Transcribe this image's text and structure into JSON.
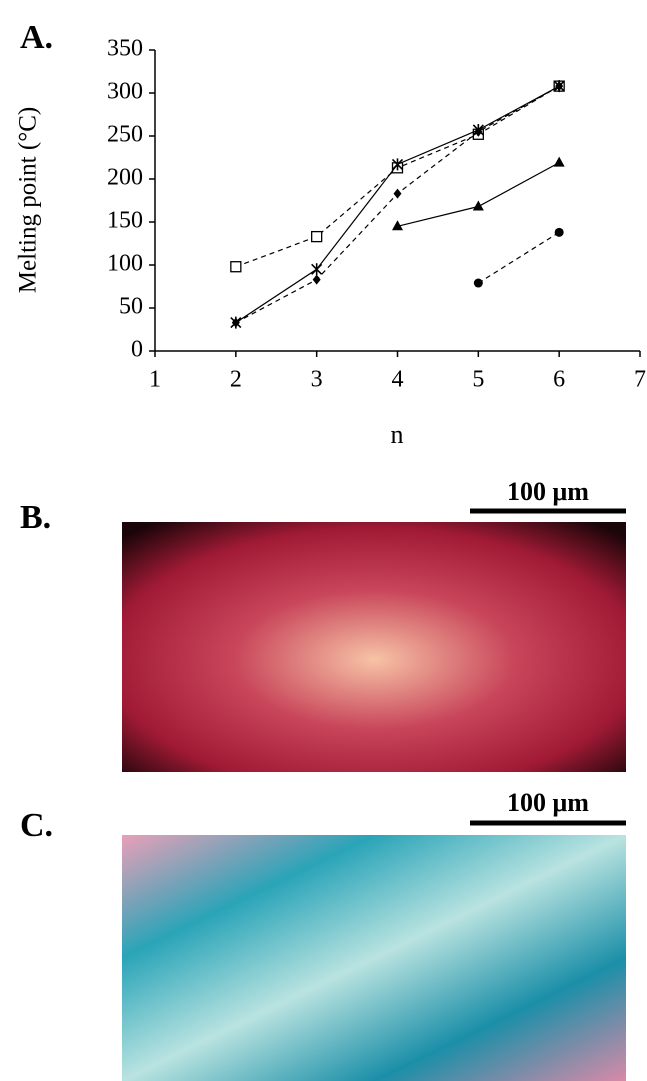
{
  "chart_data": {
    "type": "line",
    "panel_label": "A.",
    "x_label": "n",
    "y_label": "Melting point (°C)",
    "xlim": [
      1,
      7
    ],
    "xticks": [
      1,
      2,
      3,
      4,
      5,
      6,
      7
    ],
    "ylim": [
      0,
      350
    ],
    "yticks": [
      0,
      50,
      100,
      150,
      200,
      250,
      300,
      350
    ],
    "series": [
      {
        "color": "#000000",
        "marker": "square-open",
        "dashed": true,
        "x": [
          2,
          3,
          4,
          5,
          6
        ],
        "values": [
          98,
          133,
          213,
          252,
          308
        ]
      },
      {
        "color": "#000000",
        "marker": "asterisk",
        "dashed": false,
        "x": [
          2,
          3,
          4,
          5,
          6
        ],
        "values": [
          33,
          95,
          217,
          257,
          308
        ]
      },
      {
        "color": "#000000",
        "marker": "diamond",
        "dashed": true,
        "x": [
          2,
          3,
          4,
          5,
          6
        ],
        "values": [
          33,
          83,
          183,
          255,
          308
        ]
      },
      {
        "color": "#000000",
        "marker": "triangle",
        "dashed": false,
        "x": [
          4,
          5,
          6
        ],
        "values": [
          145,
          168,
          219
        ]
      },
      {
        "color": "#000000",
        "marker": "circle",
        "dashed": true,
        "x": [
          5,
          6
        ],
        "values": [
          79,
          138
        ]
      }
    ]
  },
  "panels": [
    {
      "label": "B.",
      "scale_bar": "100 μm"
    },
    {
      "label": "C.",
      "scale_bar": "100 μm"
    }
  ]
}
